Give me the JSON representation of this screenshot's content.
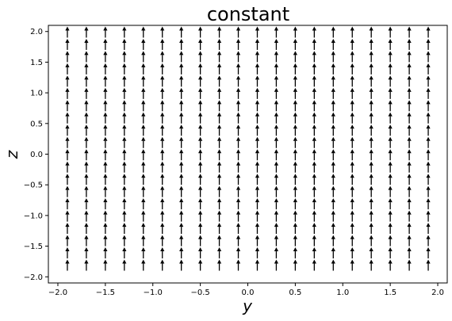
{
  "chart_data": {
    "type": "quiver",
    "title": "constant",
    "xlabel": "y",
    "ylabel": "z",
    "xlim": [
      -2.1,
      2.1
    ],
    "ylim": [
      -2.1,
      2.1
    ],
    "x_ticks": [
      -2.0,
      -1.5,
      -1.0,
      -0.5,
      0.0,
      0.5,
      1.0,
      1.5,
      2.0
    ],
    "y_ticks": [
      -2.0,
      -1.5,
      -1.0,
      -0.5,
      0.0,
      0.5,
      1.0,
      1.5,
      2.0
    ],
    "x_tick_labels": [
      "−2.0",
      "−1.5",
      "−1.0",
      "−0.5",
      "0.0",
      "0.5",
      "1.0",
      "1.5",
      "2.0"
    ],
    "y_tick_labels": [
      "−2.0",
      "−1.5",
      "−1.0",
      "−0.5",
      "0.0",
      "0.5",
      "1.0",
      "1.5",
      "2.0"
    ],
    "grid": false,
    "field": {
      "x_values": [
        -1.9,
        -1.7,
        -1.5,
        -1.3,
        -1.1,
        -0.9,
        -0.7,
        -0.5,
        -0.3,
        -0.1,
        0.1,
        0.3,
        0.5,
        0.7,
        0.9,
        1.1,
        1.3,
        1.5,
        1.7,
        1.9
      ],
      "y_values": [
        -1.9,
        -1.7,
        -1.5,
        -1.3,
        -1.1,
        -0.9,
        -0.7,
        -0.5,
        -0.3,
        -0.1,
        0.1,
        0.3,
        0.5,
        0.7,
        0.9,
        1.1,
        1.3,
        1.5,
        1.7,
        1.9
      ],
      "u": 0,
      "v": 1,
      "arrow_color": "#000000"
    }
  }
}
